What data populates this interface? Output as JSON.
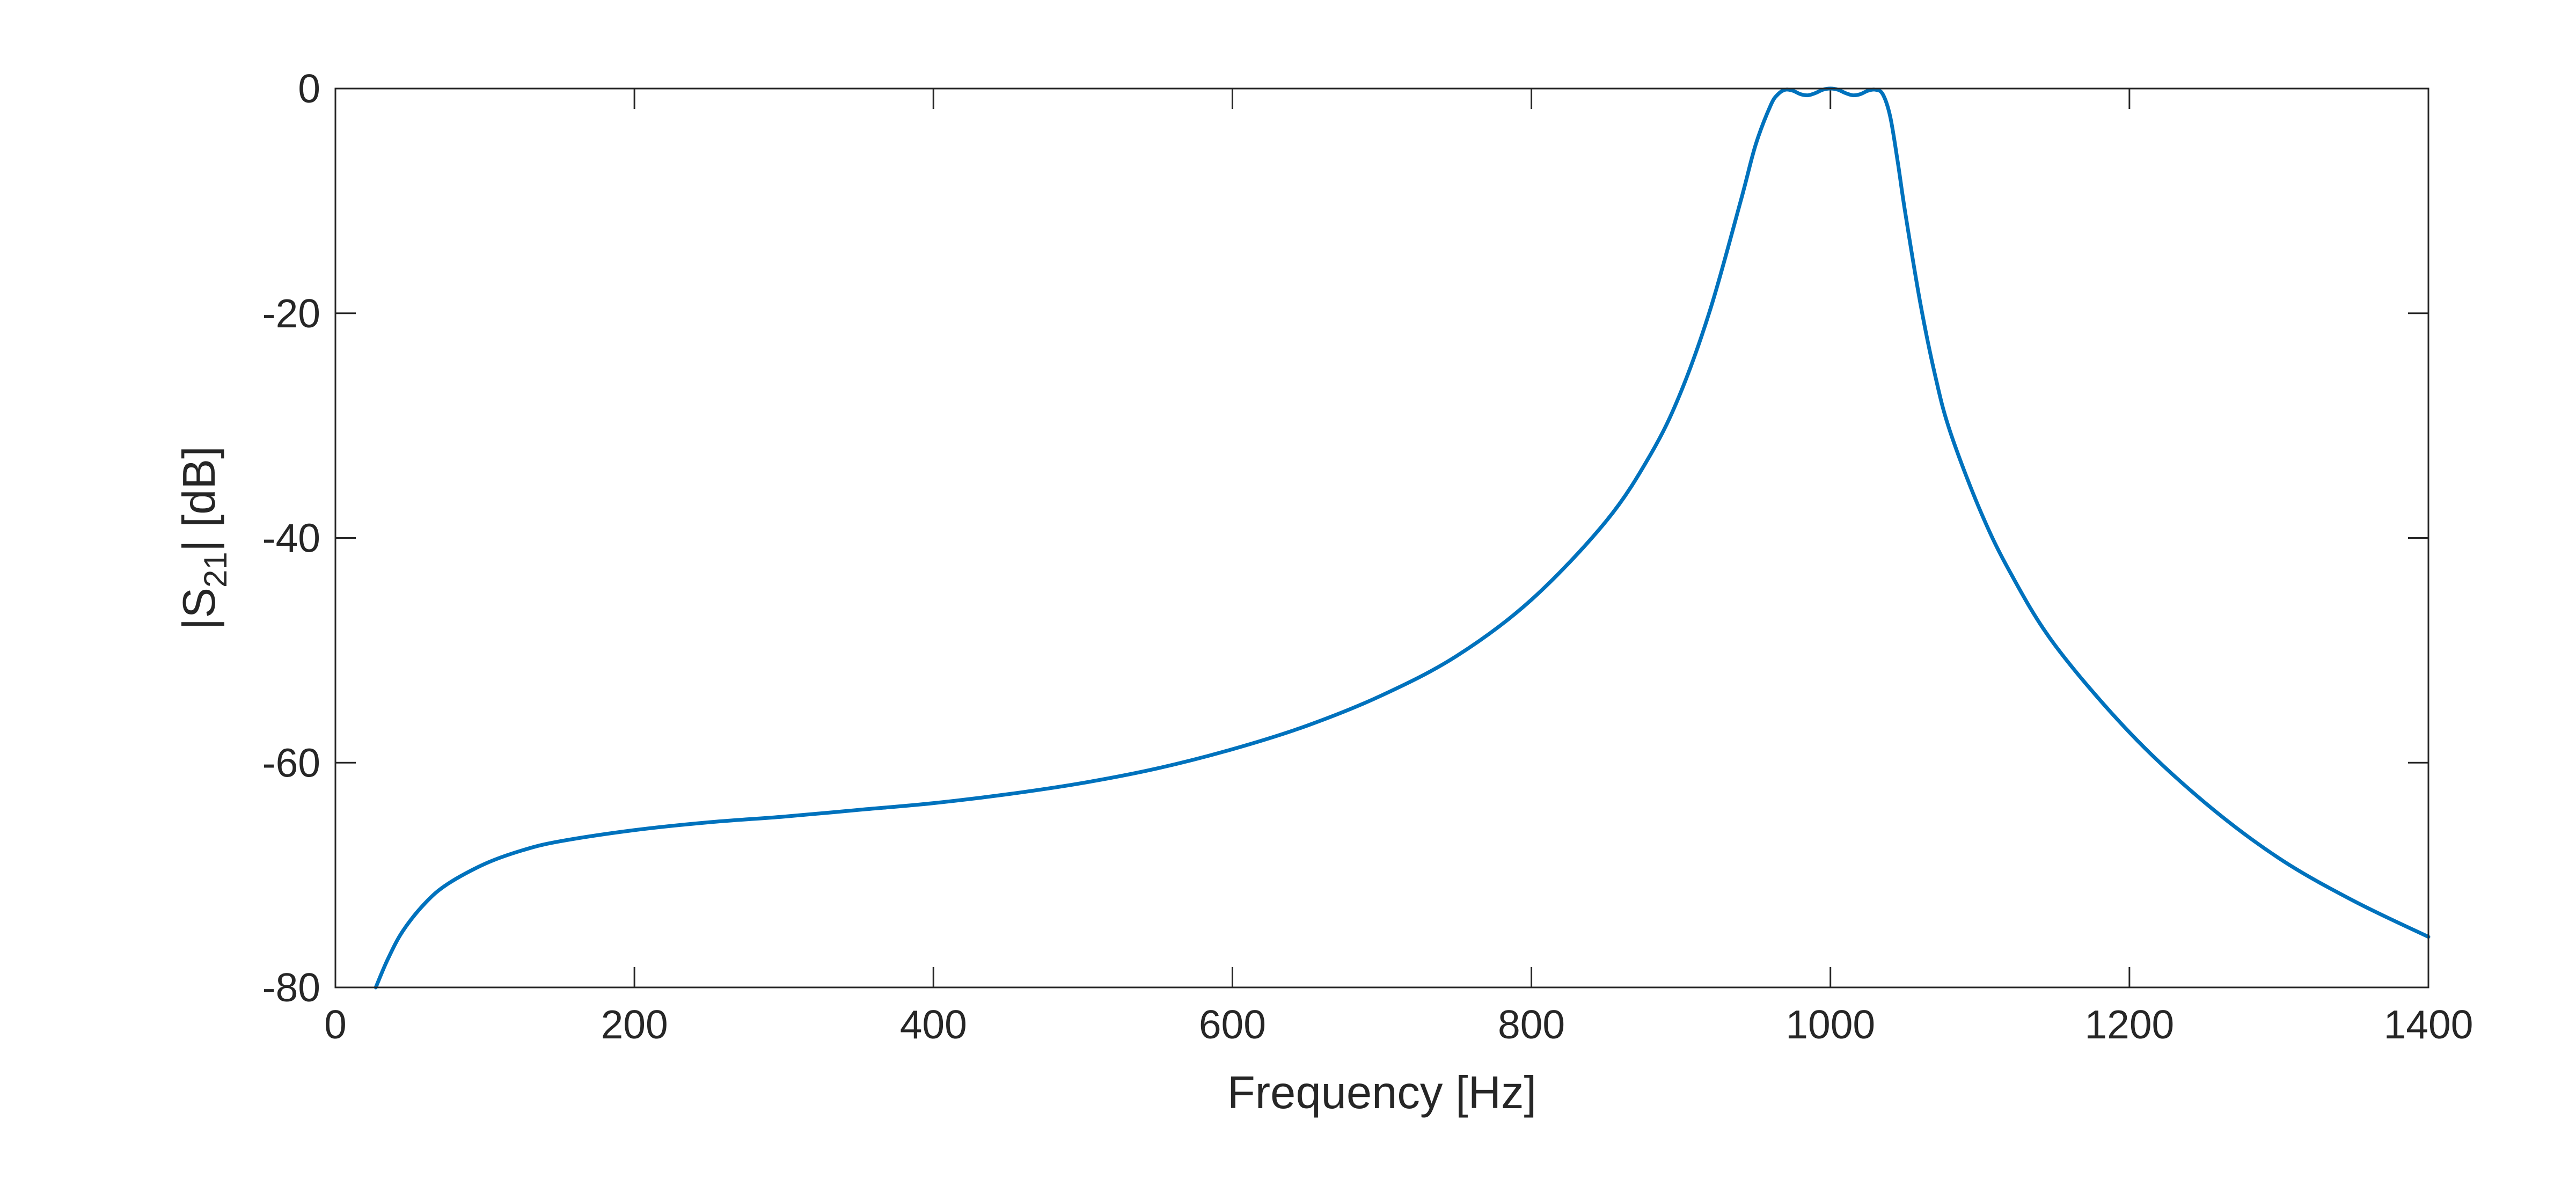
{
  "chart_data": {
    "type": "line",
    "title": "",
    "xlabel": "Frequency [Hz]",
    "ylabel_parts": {
      "pre": "|S",
      "sub": "21",
      "post": "| [dB]"
    },
    "xlim": [
      0,
      1400
    ],
    "ylim": [
      -80,
      0
    ],
    "xticks": [
      0,
      200,
      400,
      600,
      800,
      1000,
      1200,
      1400
    ],
    "xtick_labels": [
      "0",
      "200",
      "400",
      "600",
      "800",
      "1000",
      "1200",
      "1400"
    ],
    "yticks": [
      0,
      -20,
      -40,
      -60,
      -80
    ],
    "ytick_labels": [
      "0",
      "-20",
      "-40",
      "-60",
      "-80"
    ],
    "grid": false,
    "legend": "none",
    "colors": {
      "line": "#0072BD",
      "axes": "#262626"
    },
    "series": [
      {
        "x": [
          27,
          35,
          45,
          60,
          75,
          100,
          125,
          150,
          200,
          250,
          300,
          350,
          400,
          450,
          500,
          550,
          600,
          650,
          700,
          750,
          800,
          850,
          880,
          900,
          920,
          940,
          950,
          960,
          965,
          970,
          975,
          980,
          985,
          990,
          995,
          1000,
          1005,
          1010,
          1015,
          1020,
          1025,
          1030,
          1035,
          1040,
          1045,
          1050,
          1060,
          1070,
          1080,
          1100,
          1120,
          1150,
          1200,
          1250,
          1300,
          1350,
          1400
        ],
        "y": [
          -80,
          -77.5,
          -75,
          -72.5,
          -70.8,
          -69,
          -67.8,
          -67,
          -66,
          -65.3,
          -64.8,
          -64.2,
          -63.6,
          -62.8,
          -61.8,
          -60.5,
          -58.8,
          -56.7,
          -54,
          -50.5,
          -45.5,
          -38.5,
          -32.5,
          -27,
          -19.5,
          -10,
          -5,
          -1.5,
          -0.5,
          -0.1,
          -0.2,
          -0.5,
          -0.6,
          -0.4,
          -0.1,
          0,
          -0.1,
          -0.4,
          -0.6,
          -0.5,
          -0.2,
          -0.1,
          -0.5,
          -2.5,
          -6.5,
          -11,
          -19,
          -25.5,
          -30.5,
          -37.5,
          -43,
          -49.5,
          -57.3,
          -63.5,
          -68.5,
          -72.3,
          -75.5
        ]
      }
    ]
  }
}
